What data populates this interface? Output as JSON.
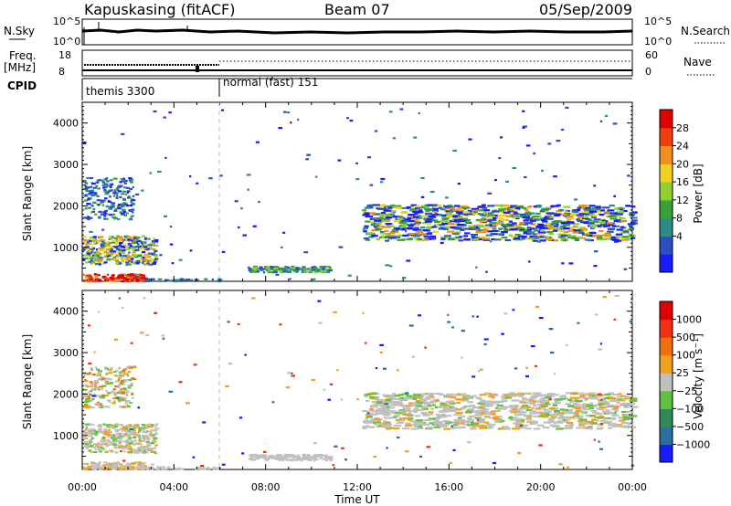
{
  "header": {
    "station": "Kapuskasing (fitACF)",
    "beam": "Beam 07",
    "date": "05/Sep/2009"
  },
  "strips": {
    "nsky_label": "N.Sky",
    "nsky_ticks": [
      "10^5",
      "10^0"
    ],
    "nsearch_label": "N.Search",
    "freq_label": "Freq.",
    "freq_unit": "[MHz]",
    "freq_ticks": [
      "18",
      "8"
    ],
    "nave_label": "Nave",
    "nave_ticks": [
      "60",
      "0"
    ],
    "cpid_label": "CPID",
    "cpid_modes": [
      {
        "name": "themis 3300",
        "start_hour": 0,
        "end_hour": 6
      },
      {
        "name": "normal (fast) 151",
        "start_hour": 6,
        "end_hour": 24
      }
    ]
  },
  "chart_data": [
    {
      "type": "heatmap",
      "ylabel": "Slant Range [km]",
      "xlabel": "",
      "x_ticks": [
        "00:00",
        "04:00",
        "08:00",
        "12:00",
        "16:00",
        "20:00",
        "00:00"
      ],
      "x_range_hours": [
        0,
        24
      ],
      "ylim": [
        180,
        4500
      ],
      "y_ticks": [
        1000,
        2000,
        3000,
        4000
      ],
      "colorbar": {
        "label": "Power [dB]",
        "ticks": [
          "4",
          "8",
          "12",
          "16",
          "20",
          "24",
          "28"
        ],
        "colors": [
          "#1a1aff",
          "#2a4fbf",
          "#2f8a8a",
          "#3aa03a",
          "#90d030",
          "#f0d020",
          "#f09020",
          "#f04010",
          "#e00000"
        ]
      }
    },
    {
      "type": "heatmap",
      "ylabel": "Slant Range [km]",
      "xlabel": "Time UT",
      "x_ticks": [
        "00:00",
        "04:00",
        "08:00",
        "12:00",
        "16:00",
        "20:00",
        "00:00"
      ],
      "x_range_hours": [
        0,
        24
      ],
      "ylim": [
        180,
        4500
      ],
      "y_ticks": [
        1000,
        2000,
        3000,
        4000
      ],
      "colorbar": {
        "label": "Velocity [m s^-1]",
        "ticks": [
          "1000",
          "500",
          "100",
          "25",
          "−25",
          "−100",
          "−500",
          "−1000"
        ],
        "colors": [
          "#1a1aff",
          "#2a6f9f",
          "#2f8a5a",
          "#60c040",
          "#c0c0c0",
          "#f0a020",
          "#f07010",
          "#f03010",
          "#e00000"
        ]
      }
    }
  ]
}
